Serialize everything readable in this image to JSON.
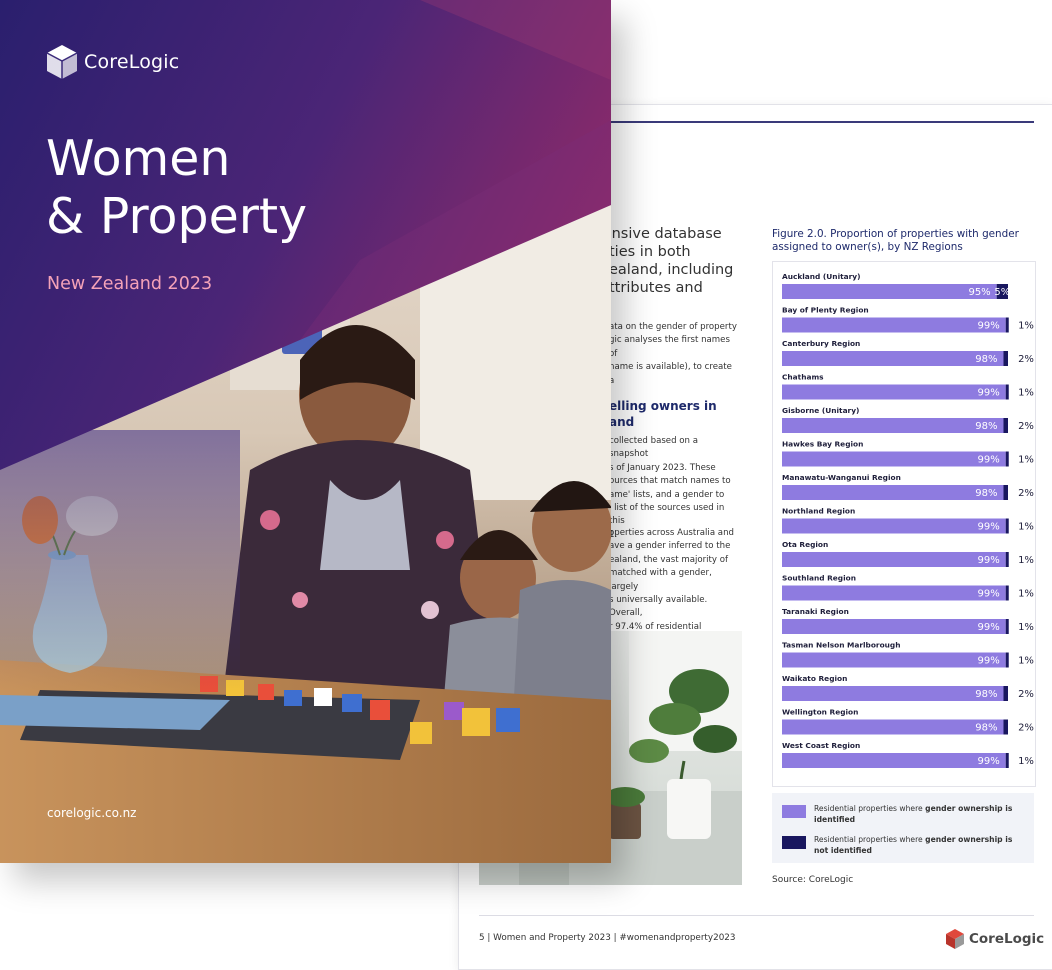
{
  "cover": {
    "brand": "CoreLogic",
    "title": "Women\n& Property",
    "subtitle": "New Zealand 2023",
    "url": "corelogic.co.nz"
  },
  "page": {
    "intro_heading": "tensive database\nties in both\nealand, including\nttributes and",
    "paragraph_1": "ata on the gender of property\ngic analyses the first names of\nname is available), to create a",
    "section_heading": "elling owners in\nand",
    "paragraph_2": "collected based on a snapshot\ns of January 2023. These\nources that match names to\name' lists, and a gender to\nl list of the sources used in this\n1.",
    "paragraph_3": "operties across Australia and\nave a gender inferred to the\nealand, the vast majority of\nmatched with a gender, largely\ns universally available.  Overall,\nr 97.4% of residential property",
    "figure_title": "Figure 2.0. Proportion of properties with gender\nassigned to owner(s), by NZ Regions",
    "legend": [
      {
        "prefix": "Residential properties where ",
        "bold": "gender ownership is identified",
        "color": "#8e7be0"
      },
      {
        "prefix": "Residential properties where ",
        "bold": "gender ownership is not identified",
        "color": "#19175f"
      }
    ],
    "source": "Source: CoreLogic",
    "footer": "5  |  Women and Property 2023  |  #womenandproperty2023",
    "footer_brand": "CoreLogic"
  },
  "colors": {
    "identified": "#8e7be0",
    "not_identified": "#19175f",
    "cover_dark": "#2a1f6e",
    "cover_magenta": "#8a2a6a",
    "subtitle_pink": "#f4a2b8"
  },
  "chart_data": {
    "type": "bar",
    "orientation": "horizontal-stacked-100",
    "title": "Figure 2.0. Proportion of properties with gender assigned to owner(s), by NZ Regions",
    "categories": [
      "Auckland (Unitary)",
      "Bay of Plenty Region",
      "Canterbury Region",
      "Chathams",
      "Gisborne (Unitary)",
      "Hawkes Bay Region",
      "Manawatu-Wanganui Region",
      "Northland Region",
      "Ota Region",
      "Southland Region",
      "Taranaki Region",
      "Tasman Nelson Marlborough",
      "Waikato Region",
      "Wellington Region",
      "West Coast Region"
    ],
    "series": [
      {
        "name": "Residential properties where gender ownership is identified",
        "values": [
          95,
          99,
          98,
          99,
          98,
          99,
          98,
          99,
          99,
          99,
          99,
          99,
          98,
          98,
          99
        ],
        "labels": [
          "95%",
          "99%",
          "98%",
          "99%",
          "98%",
          "99%",
          "98%",
          "99%",
          "99%",
          "99%",
          "99%",
          "99%",
          "98%",
          "98%",
          "99%"
        ]
      },
      {
        "name": "Residential properties where gender ownership is not identified",
        "values": [
          5,
          1,
          2,
          1,
          2,
          1,
          2,
          1,
          1,
          1,
          1,
          1,
          2,
          2,
          1
        ],
        "labels": [
          "5%",
          "1%",
          "2%",
          "1%",
          "2%",
          "1%",
          "2%",
          "1%",
          "1%",
          "1%",
          "1%",
          "1%",
          "2%",
          "2%",
          "1%"
        ]
      }
    ],
    "xlim": [
      0,
      100
    ],
    "legend": "bottom"
  }
}
